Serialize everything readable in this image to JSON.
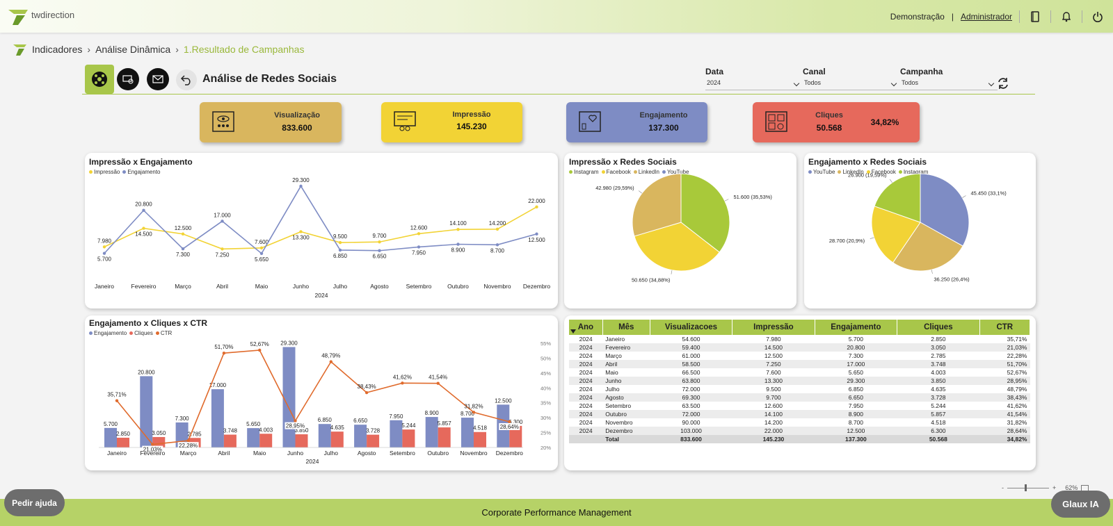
{
  "app": {
    "brand": "twdirection",
    "env_label": "Demonstração",
    "separator": "|",
    "user_link": "Administrador"
  },
  "breadcrumb": [
    "Indicadores",
    "Análise Dinâmica",
    "1.Resultado de Campanhas"
  ],
  "page_title": "Análise de Redes Sociais",
  "filters": [
    {
      "label": "Data",
      "value": "2024"
    },
    {
      "label": "Canal",
      "value": "Todos"
    },
    {
      "label": "Campanha",
      "value": "Todos"
    }
  ],
  "kpis": [
    {
      "title": "Visualização",
      "value": "833.600",
      "color": "#d9b65e",
      "icon": "view-icon"
    },
    {
      "title": "Impressão",
      "value": "145.230",
      "color": "#f2d335",
      "icon": "impression-icon"
    },
    {
      "title": "Engajamento",
      "value": "137.300",
      "color": "#7e8cc4",
      "icon": "engagement-icon"
    },
    {
      "title": "Cliques",
      "value": "50.568",
      "extra": "34,82%",
      "color": "#e6695c",
      "icon": "clicks-icon"
    }
  ],
  "colors": {
    "impressao": "#f2d335",
    "engajamento": "#7e8cc4",
    "cliques": "#e6695c",
    "ctr": "#e06b2d",
    "linkedin": "#d9b65e",
    "instagram": "#a8c93a",
    "facebook": "#f2d335",
    "youtube": "#7e8cc4",
    "accent": "#a8c64a"
  },
  "chart_data": [
    {
      "type": "line",
      "title": "Impressão x Engajamento",
      "xlabel": "2024",
      "categories": [
        "Janeiro",
        "Fevereiro",
        "Março",
        "Abril",
        "Maio",
        "Junho",
        "Julho",
        "Agosto",
        "Setembro",
        "Outubro",
        "Novembro",
        "Dezembro"
      ],
      "series": [
        {
          "name": "Impressão",
          "values": [
            7980,
            14500,
            12500,
            7250,
            7600,
            13300,
            9500,
            9700,
            12600,
            14100,
            14200,
            22000
          ],
          "labels": [
            "7.980",
            "14.500",
            "12.500",
            "7.250",
            "7.600",
            "13.300",
            "9.500",
            "9.700",
            "12.600",
            "14.100",
            "14.200",
            "22.000"
          ]
        },
        {
          "name": "Engajamento",
          "values": [
            5700,
            20800,
            7300,
            17000,
            5650,
            29300,
            6850,
            6650,
            7950,
            8900,
            8700,
            12500
          ],
          "labels": [
            "5.700",
            "20.800",
            "7.300",
            "17.000",
            "5.650",
            "29.300",
            "6.850",
            "6.650",
            "7.950",
            "8.900",
            "8.700",
            "12.500"
          ]
        }
      ],
      "legend": "top-left"
    },
    {
      "type": "pie",
      "title": "Impressão x Redes Sociais",
      "legend_entries": [
        "Instagram",
        "Facebook",
        "LinkedIn",
        "YouTube"
      ],
      "slices": [
        {
          "name": "Instagram",
          "value": 51600,
          "label": "51.600 (35,53%)"
        },
        {
          "name": "Facebook",
          "value": 50650,
          "label": "50.650 (34,88%)"
        },
        {
          "name": "LinkedIn",
          "value": 42980,
          "label": "42.980 (29,59%)"
        }
      ]
    },
    {
      "type": "pie",
      "title": "Engajamento x Redes Sociais",
      "legend_entries": [
        "YouTube",
        "LinkedIn",
        "Facebook",
        "Instagram"
      ],
      "slices": [
        {
          "name": "YouTube",
          "value": 45450,
          "label": "45.450 (33,1%)"
        },
        {
          "name": "LinkedIn",
          "value": 36250,
          "label": "36.250 (26,4%)"
        },
        {
          "name": "Facebook",
          "value": 28700,
          "label": "28.700 (20,9%)"
        },
        {
          "name": "Instagram",
          "value": 26900,
          "label": "26.900 (19,59%)"
        }
      ]
    },
    {
      "type": "bar",
      "title": "Engajamento x Cliques x CTR",
      "xlabel": "2024",
      "categories": [
        "Janeiro",
        "Fevereiro",
        "Março",
        "Abril",
        "Maio",
        "Junho",
        "Julho",
        "Agosto",
        "Setembro",
        "Outubro",
        "Novembro",
        "Dezembro"
      ],
      "series": [
        {
          "name": "Engajamento",
          "values": [
            5700,
            20800,
            7300,
            17000,
            5650,
            29300,
            6850,
            6650,
            7950,
            8900,
            8700,
            12500
          ],
          "labels": [
            "5.700",
            "20.800",
            "7.300",
            "17.000",
            "5.650",
            "29.300",
            "6.850",
            "6.650",
            "7.950",
            "8.900",
            "8.700",
            "12.500"
          ]
        },
        {
          "name": "Cliques",
          "values": [
            2850,
            3050,
            2785,
            3748,
            4003,
            3850,
            4635,
            3728,
            5244,
            5857,
            4518,
            6300
          ],
          "labels": [
            "2.850",
            "3.050",
            "2.785",
            "3.748",
            "4.003",
            "3.850",
            "4.635",
            "3.728",
            "5.244",
            "5.857",
            "4.518",
            "6.300"
          ]
        },
        {
          "name": "CTR",
          "values": [
            35.71,
            21.03,
            22.28,
            51.7,
            52.67,
            28.95,
            48.79,
            38.43,
            41.62,
            41.54,
            31.82,
            28.64
          ],
          "labels": [
            "35,71%",
            "21,03%",
            "22,28%",
            "51,70%",
            "52,67%",
            "28,95%",
            "48,79%",
            "38,43%",
            "41,62%",
            "41,54%",
            "31,82%",
            "28,64%"
          ]
        }
      ],
      "y2_ticks": [
        "55%",
        "50%",
        "45%",
        "40%",
        "35%",
        "30%",
        "25%",
        "20%"
      ],
      "y2lim": [
        20,
        55
      ]
    },
    {
      "type": "table",
      "columns": [
        "Ano",
        "Mês",
        "Visualizacoes",
        "Impressão",
        "Engajamento",
        "Cliques",
        "CTR"
      ],
      "rows": [
        [
          "2024",
          "Janeiro",
          "54.600",
          "7.980",
          "5.700",
          "2.850",
          "35,71%"
        ],
        [
          "2024",
          "Fevereiro",
          "59.400",
          "14.500",
          "20.800",
          "3.050",
          "21,03%"
        ],
        [
          "2024",
          "Março",
          "61.000",
          "12.500",
          "7.300",
          "2.785",
          "22,28%"
        ],
        [
          "2024",
          "Abril",
          "58.500",
          "7.250",
          "17.000",
          "3.748",
          "51,70%"
        ],
        [
          "2024",
          "Maio",
          "66.500",
          "7.600",
          "5.650",
          "4.003",
          "52,67%"
        ],
        [
          "2024",
          "Junho",
          "63.800",
          "13.300",
          "29.300",
          "3.850",
          "28,95%"
        ],
        [
          "2024",
          "Julho",
          "72.000",
          "9.500",
          "6.850",
          "4.635",
          "48,79%"
        ],
        [
          "2024",
          "Agosto",
          "69.300",
          "9.700",
          "6.650",
          "3.728",
          "38,43%"
        ],
        [
          "2024",
          "Setembro",
          "63.500",
          "12.600",
          "7.950",
          "5.244",
          "41,62%"
        ],
        [
          "2024",
          "Outubro",
          "72.000",
          "14.100",
          "8.900",
          "5.857",
          "41,54%"
        ],
        [
          "2024",
          "Novembro",
          "90.000",
          "14.200",
          "8.700",
          "4.518",
          "31,82%"
        ],
        [
          "2024",
          "Dezembro",
          "103.000",
          "22.000",
          "12.500",
          "6.300",
          "28,64%"
        ]
      ],
      "total": [
        "Total",
        "833.600",
        "145.230",
        "137.300",
        "50.568",
        "34,82%"
      ]
    }
  ],
  "zoom": {
    "minus": "-",
    "plus": "+",
    "level": "62%"
  },
  "footer": "Corporate Performance Management",
  "help_button": "Pedir ajuda",
  "ai_button": "Glaux IA"
}
